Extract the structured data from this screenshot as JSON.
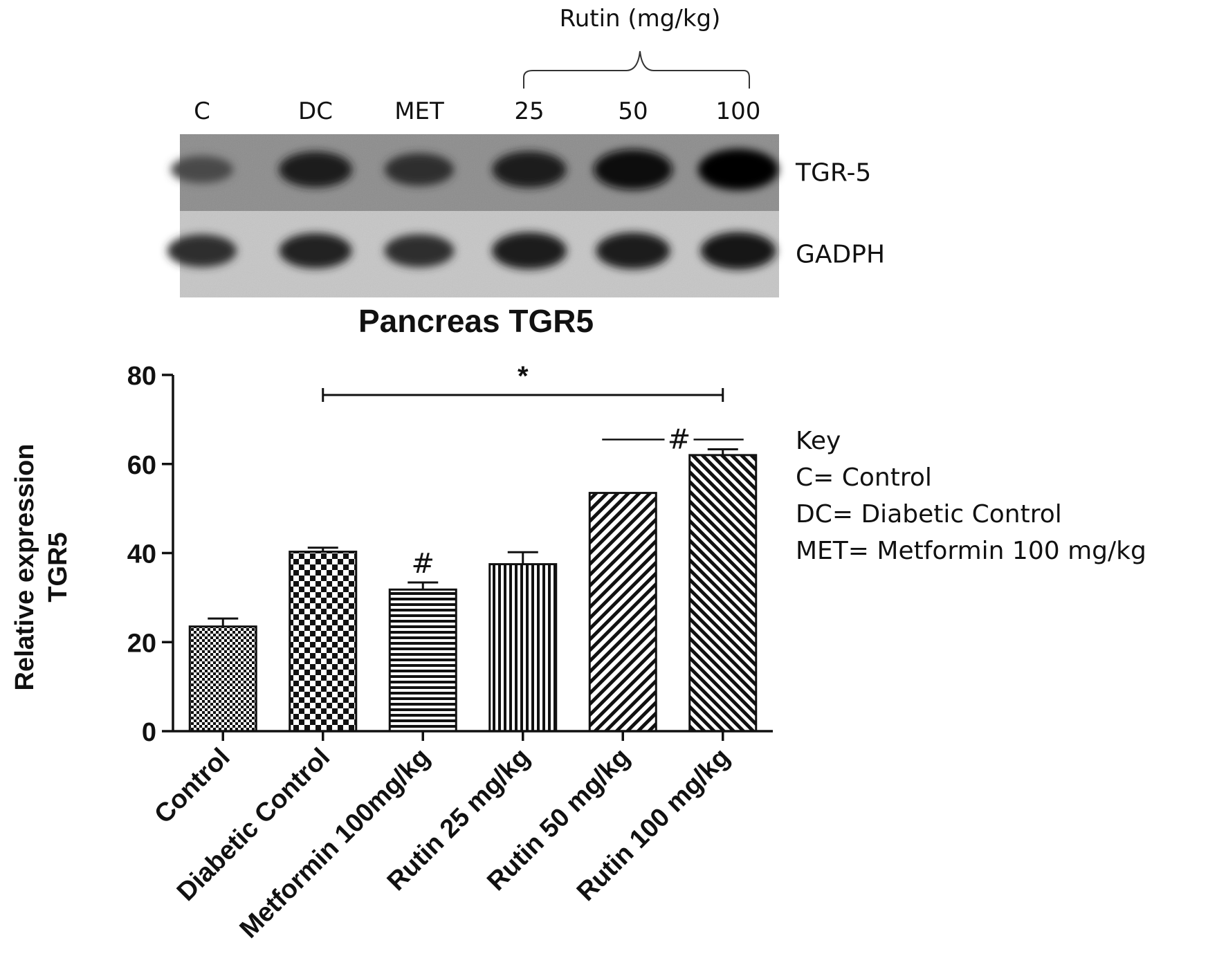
{
  "blot": {
    "group_label": "Rutin (mg/kg)",
    "lanes": [
      "C",
      "DC",
      "MET",
      "25",
      "50",
      "100"
    ],
    "rows": [
      {
        "label": "TGR-5",
        "band_intensity": [
          0.35,
          0.75,
          0.6,
          0.78,
          0.95,
          1.0
        ]
      },
      {
        "label": "GADPH",
        "band_intensity": [
          0.6,
          0.72,
          0.62,
          0.8,
          0.78,
          0.82
        ]
      }
    ]
  },
  "chart_data": {
    "type": "bar",
    "title": "Pancreas TGR5",
    "ylabel_line1": "Relative expression",
    "ylabel_line2": "TGR5",
    "xlabel": "",
    "ylim": [
      0,
      80
    ],
    "yticks": [
      0,
      20,
      40,
      60,
      80
    ],
    "categories": [
      "Control",
      "Diabetic Control",
      "Metformin 100mg/kg",
      "Rutin 25 mg/kg",
      "Rutin 50 mg/kg",
      "Rutin 100 mg/kg"
    ],
    "values": [
      23.5,
      40.3,
      31.8,
      37.5,
      53.5,
      62
    ],
    "errors": [
      1.8,
      0.9,
      1.6,
      2.7,
      0,
      1.3
    ],
    "patterns": [
      "checker-fine",
      "checker-coarse",
      "horizontal-lines",
      "vertical-lines",
      "diagonal-lines",
      "diagonal-lines-dense"
    ],
    "significance": [
      {
        "symbol": "*",
        "from": 1,
        "to": 5,
        "y": 75.5
      },
      {
        "symbol": "#",
        "over": 2
      },
      {
        "symbol": "#",
        "from": 4,
        "to": 5,
        "y": 65.5
      }
    ],
    "key": {
      "title": "Key",
      "entries": [
        "C= Control",
        "DC= Diabetic Control",
        "MET= Metformin 100 mg/kg"
      ]
    }
  }
}
